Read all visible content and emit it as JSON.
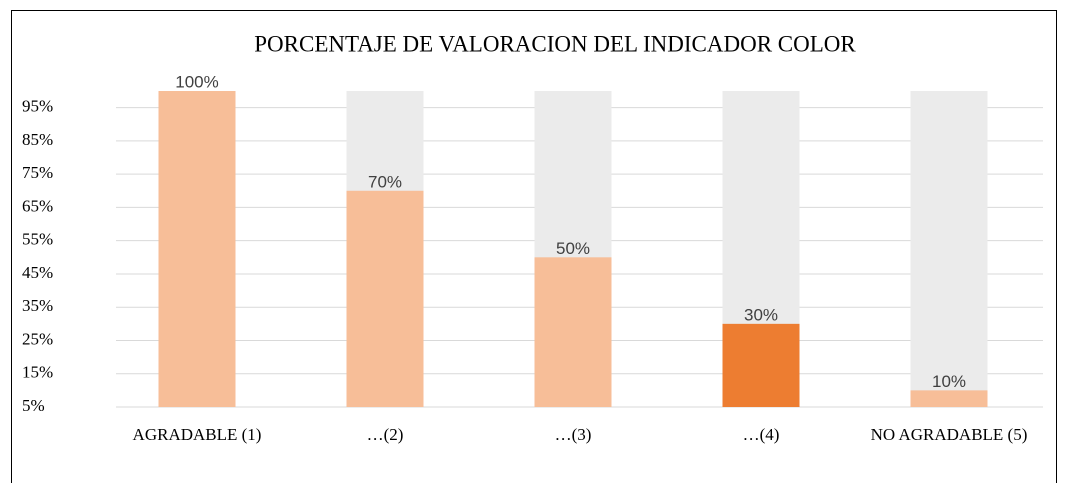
{
  "chart_data": {
    "type": "bar",
    "title": "PORCENTAJE DE VALORACION DEL INDICADOR COLOR",
    "categories": [
      "AGRADABLE (1)",
      "…(2)",
      "…(3)",
      "…(4)",
      "NO AGRADABLE (5)"
    ],
    "series": [
      {
        "values": [
          100,
          70,
          50,
          30,
          10
        ],
        "value_labels": [
          "100%",
          "70%",
          "50%",
          "30%",
          "10%"
        ],
        "colors": [
          "#f7be98",
          "#f7be98",
          "#f7be98",
          "#ed7d31",
          "#f7be98"
        ]
      }
    ],
    "background": {
      "color": "#ebebeb",
      "values": [
        100,
        100,
        100,
        100,
        100
      ]
    },
    "ylim": [
      5,
      100
    ],
    "yticks": [
      {
        "value": 5,
        "label": "5%"
      },
      {
        "value": 15,
        "label": "15%"
      },
      {
        "value": 25,
        "label": "25%"
      },
      {
        "value": 35,
        "label": "35%"
      },
      {
        "value": 45,
        "label": "45%"
      },
      {
        "value": 55,
        "label": "55%"
      },
      {
        "value": 65,
        "label": "65%"
      },
      {
        "value": 75,
        "label": "75%"
      },
      {
        "value": 85,
        "label": "85%"
      },
      {
        "value": 95,
        "label": "95%"
      }
    ],
    "grid": true
  }
}
